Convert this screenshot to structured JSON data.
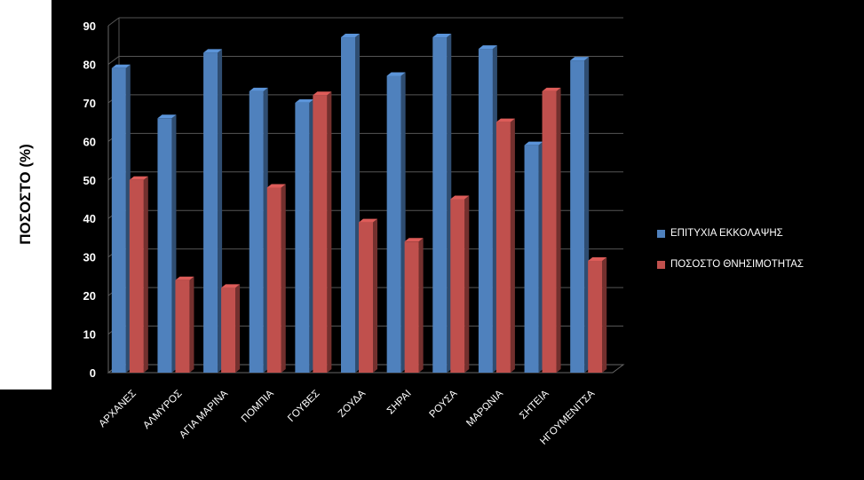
{
  "chart_data": {
    "type": "bar",
    "ylabel": "ΠΟΣΟΣΤΟ (%)",
    "xlabel": "",
    "ylim": [
      0,
      90
    ],
    "yticks": [
      0,
      10,
      20,
      30,
      40,
      50,
      60,
      70,
      80,
      90
    ],
    "grid": true,
    "legend_position": "right",
    "categories": [
      "ΑΡΧΑΝΕΣ",
      "ΑΛΜΥΡΟΣ",
      "ΑΓΙΑ ΜΑΡΙΝΑ",
      "ΠΟΜΠΙΑ",
      "ΓΟΥΒΕΣ",
      "ΖΟΥΔΑ",
      "ΣΗΡΑΙ",
      "ΡΟΥΣΑ",
      "ΜΑΡΩΝΙΑ",
      "ΣΗΤΕΙΑ",
      "ΗΓΟΥΜΕΝΙΤΣΑ"
    ],
    "series": [
      {
        "name": "ΕΠΙΤΥΧΙΑ ΕΚΚΟΛΑΨΗΣ",
        "color": "#4f81bd",
        "values": [
          79,
          66,
          83,
          73,
          70,
          87,
          77,
          87,
          84,
          59,
          81
        ]
      },
      {
        "name": "ΠΟΣΟΣΤΟ ΘΝΗΣΙΜΟΤΗΤΑΣ",
        "color": "#c0504d",
        "values": [
          50,
          24,
          22,
          48,
          72,
          39,
          34,
          45,
          65,
          73,
          29
        ]
      }
    ]
  }
}
